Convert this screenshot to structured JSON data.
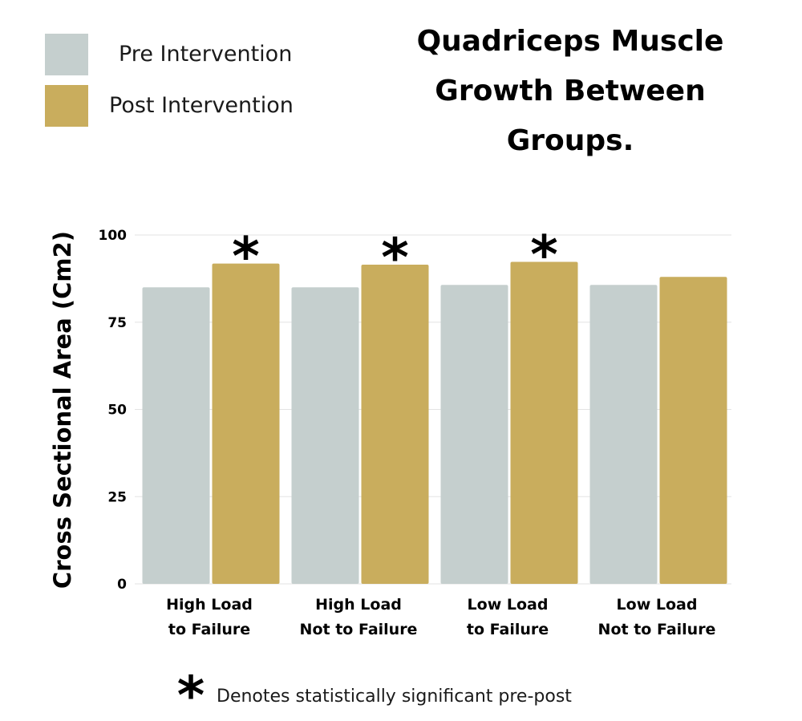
{
  "colors": {
    "pre": "#c5cfce",
    "post": "#c9ad5d",
    "grid": "#e3e3e3",
    "text": "#000000"
  },
  "chart_data": {
    "type": "bar",
    "title": [
      "Quadriceps Muscle",
      "Growth Between",
      "Groups."
    ],
    "ylabel": "Cross Sectional Area (Cm2)",
    "xlabel": "",
    "ylim": [
      0,
      100
    ],
    "yticks": [
      0,
      25,
      50,
      75,
      100
    ],
    "grid": true,
    "legend_position": "top-left",
    "categories": [
      [
        "High Load",
        "to Failure"
      ],
      [
        "High Load",
        "Not to Failure"
      ],
      [
        "Low Load",
        "to Failure"
      ],
      [
        "Low Load",
        "Not to Failure"
      ]
    ],
    "series": [
      {
        "name": "Pre Intervention",
        "color_key": "pre",
        "values": [
          85.0,
          85.0,
          85.7,
          85.7
        ]
      },
      {
        "name": "Post Intervention",
        "color_key": "post",
        "values": [
          91.8,
          91.5,
          92.3,
          88.0
        ]
      }
    ],
    "significant": [
      true,
      true,
      true,
      false
    ],
    "annotation_symbol": "*",
    "footnote": "Denotes statistically significant pre-post"
  }
}
